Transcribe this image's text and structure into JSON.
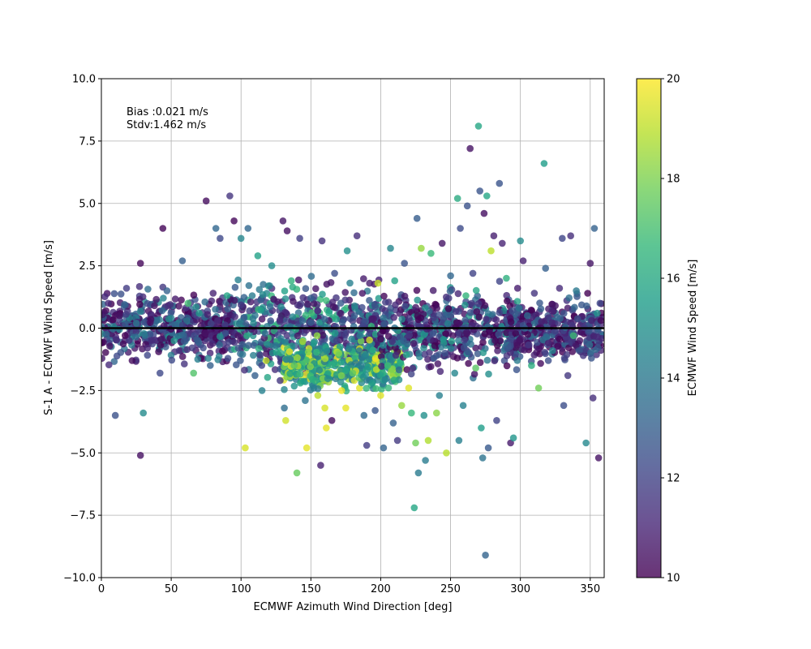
{
  "chart_data": {
    "type": "scatter",
    "xlabel": "ECMWF Azimuth Wind Direction [deg]",
    "ylabel": "S-1 A - ECMWF Wind Speed [m/s]",
    "xlim": [
      0,
      360
    ],
    "ylim": [
      -10,
      10
    ],
    "xticks": [
      0,
      50,
      100,
      150,
      200,
      250,
      300,
      350
    ],
    "yticks": [
      -10.0,
      -7.5,
      -5.0,
      -2.5,
      0.0,
      2.5,
      5.0,
      7.5,
      10.0
    ],
    "ytick_labels": [
      "−10.0",
      "−7.5",
      "−5.0",
      "−2.5",
      "0.0",
      "2.5",
      "5.0",
      "7.5",
      "10.0"
    ],
    "grid": true,
    "annotation": {
      "line1": "Bias :0.021 m/s",
      "line2": "Stdv:1.462 m/s"
    },
    "zero_line": 0,
    "colorbar": {
      "label": "ECMWF Wind Speed [m/s]",
      "range": [
        10,
        20
      ],
      "ticks": [
        10,
        12,
        14,
        16,
        18,
        20
      ],
      "colormap": "viridis",
      "stops": [
        "#440154",
        "#482878",
        "#3e4989",
        "#31688e",
        "#26828e",
        "#1f9e89",
        "#35b779",
        "#6ece58",
        "#b5de2b",
        "#fde725"
      ]
    },
    "point_alpha": 0.8,
    "points": [
      [
        5,
        1.0,
        11.2
      ],
      [
        10,
        -3.5,
        12.5
      ],
      [
        13,
        0.5,
        10.5
      ],
      [
        18,
        1.6,
        11.8
      ],
      [
        22,
        -1.3,
        10.3
      ],
      [
        25,
        0.2,
        14.0
      ],
      [
        28,
        2.6,
        10.2
      ],
      [
        28,
        -5.1,
        10.4
      ],
      [
        30,
        -3.4,
        14.8
      ],
      [
        33,
        -0.8,
        11.1
      ],
      [
        38,
        0.9,
        10.6
      ],
      [
        42,
        -1.8,
        12.2
      ],
      [
        44,
        4.0,
        10.1
      ],
      [
        47,
        1.5,
        13.1
      ],
      [
        52,
        -0.5,
        15.1
      ],
      [
        58,
        2.7,
        13.0
      ],
      [
        62,
        1.0,
        16.9
      ],
      [
        66,
        -1.8,
        17.2
      ],
      [
        70,
        0.6,
        15.3
      ],
      [
        75,
        5.1,
        10.3
      ],
      [
        80,
        1.4,
        11.0
      ],
      [
        82,
        4.0,
        13.3
      ],
      [
        85,
        3.6,
        12.2
      ],
      [
        90,
        1.3,
        15.8
      ],
      [
        92,
        5.3,
        11.5
      ],
      [
        95,
        4.3,
        10.2
      ],
      [
        98,
        -0.8,
        12.5
      ],
      [
        100,
        3.6,
        14.6
      ],
      [
        103,
        -4.8,
        19.4
      ],
      [
        105,
        4.0,
        13.3
      ],
      [
        108,
        1.3,
        14.2
      ],
      [
        110,
        -1.9,
        13.0
      ],
      [
        112,
        2.9,
        15.7
      ],
      [
        115,
        -2.5,
        14.4
      ],
      [
        118,
        -1.3,
        19.0
      ],
      [
        122,
        2.5,
        14.9
      ],
      [
        125,
        -0.7,
        13.9
      ],
      [
        128,
        -2.1,
        11.6
      ],
      [
        130,
        4.3,
        10.6
      ],
      [
        131,
        -3.2,
        13.6
      ],
      [
        132,
        -3.7,
        19.3
      ],
      [
        133,
        3.9,
        10.4
      ],
      [
        136,
        1.9,
        16.4
      ],
      [
        138,
        -1.5,
        17.4
      ],
      [
        140,
        -5.8,
        17.6
      ],
      [
        142,
        3.6,
        11.9
      ],
      [
        144,
        0.3,
        13.3
      ],
      [
        146,
        -2.9,
        13.8
      ],
      [
        147,
        -4.8,
        19.6
      ],
      [
        150,
        1.2,
        12.9
      ],
      [
        152,
        -0.6,
        15.5
      ],
      [
        155,
        -2.7,
        19.0
      ],
      [
        157,
        -5.5,
        10.9
      ],
      [
        158,
        3.5,
        11.4
      ],
      [
        160,
        -3.2,
        19.4
      ],
      [
        161,
        -4.0,
        19.6
      ],
      [
        163,
        0.6,
        15.9
      ],
      [
        165,
        -3.7,
        10.3
      ],
      [
        167,
        2.2,
        12.4
      ],
      [
        170,
        -1.0,
        18.1
      ],
      [
        172,
        -2.5,
        19.8
      ],
      [
        175,
        -3.2,
        19.6
      ],
      [
        176,
        3.1,
        15.0
      ],
      [
        180,
        -1.8,
        17.5
      ],
      [
        183,
        3.7,
        11.3
      ],
      [
        185,
        -0.3,
        14.1
      ],
      [
        188,
        -3.5,
        13.4
      ],
      [
        190,
        -4.7,
        11.8
      ],
      [
        192,
        1.8,
        10.8
      ],
      [
        194,
        -2.2,
        15.4
      ],
      [
        196,
        -3.3,
        12.7
      ],
      [
        198,
        1.8,
        19.2
      ],
      [
        200,
        -2.7,
        19.5
      ],
      [
        202,
        -4.8,
        13.2
      ],
      [
        205,
        -1.5,
        16.8
      ],
      [
        207,
        3.2,
        14.6
      ],
      [
        209,
        -3.8,
        13.1
      ],
      [
        210,
        1.9,
        15.7
      ],
      [
        212,
        -4.5,
        11.7
      ],
      [
        215,
        -3.1,
        18.4
      ],
      [
        217,
        2.6,
        12.6
      ],
      [
        220,
        -2.4,
        19.5
      ],
      [
        222,
        -3.4,
        16.6
      ],
      [
        224,
        -7.2,
        15.9
      ],
      [
        225,
        -4.6,
        17.8
      ],
      [
        226,
        4.4,
        12.9
      ],
      [
        227,
        -5.8,
        14.1
      ],
      [
        229,
        3.2,
        18.4
      ],
      [
        231,
        -3.5,
        15.0
      ],
      [
        232,
        -5.3,
        14.2
      ],
      [
        234,
        -4.5,
        18.8
      ],
      [
        236,
        3.0,
        16.7
      ],
      [
        238,
        -1.2,
        12.8
      ],
      [
        240,
        -3.4,
        18.2
      ],
      [
        242,
        -2.7,
        14.3
      ],
      [
        244,
        3.4,
        10.6
      ],
      [
        246,
        -1.0,
        12.5
      ],
      [
        247,
        -5.0,
        18.9
      ],
      [
        250,
        2.1,
        13.3
      ],
      [
        253,
        -1.8,
        14.6
      ],
      [
        255,
        5.2,
        16.1
      ],
      [
        256,
        -4.5,
        14.3
      ],
      [
        257,
        4.0,
        12.3
      ],
      [
        259,
        -3.1,
        14.4
      ],
      [
        261,
        1.3,
        16.5
      ],
      [
        262,
        4.9,
        12.5
      ],
      [
        264,
        7.2,
        10.5
      ],
      [
        266,
        2.2,
        12.0
      ],
      [
        268,
        -1.6,
        17.4
      ],
      [
        270,
        8.1,
        15.9
      ],
      [
        271,
        5.5,
        12.6
      ],
      [
        272,
        -4.0,
        15.5
      ],
      [
        273,
        -5.2,
        13.8
      ],
      [
        274,
        4.6,
        10.4
      ],
      [
        275,
        -9.1,
        13.2
      ],
      [
        276,
        5.3,
        15.9
      ],
      [
        277,
        -4.8,
        12.8
      ],
      [
        279,
        3.1,
        19.0
      ],
      [
        281,
        3.7,
        10.9
      ],
      [
        283,
        -3.7,
        12.0
      ],
      [
        285,
        5.8,
        12.6
      ],
      [
        287,
        3.4,
        11.0
      ],
      [
        290,
        2.0,
        16.3
      ],
      [
        293,
        -4.6,
        10.7
      ],
      [
        295,
        -4.4,
        15.2
      ],
      [
        298,
        1.6,
        10.8
      ],
      [
        300,
        3.5,
        14.8
      ],
      [
        302,
        2.7,
        10.9
      ],
      [
        305,
        0.5,
        13.4
      ],
      [
        308,
        -1.5,
        16.2
      ],
      [
        310,
        1.4,
        11.5
      ],
      [
        313,
        -2.4,
        17.8
      ],
      [
        317,
        6.6,
        15.5
      ],
      [
        318,
        2.4,
        13.0
      ],
      [
        320,
        -1.3,
        12.4
      ],
      [
        323,
        -0.9,
        14.5
      ],
      [
        325,
        0.9,
        10.6
      ],
      [
        328,
        1.6,
        11.2
      ],
      [
        330,
        3.6,
        12.1
      ],
      [
        331,
        -3.1,
        12.4
      ],
      [
        334,
        -1.9,
        11.6
      ],
      [
        336,
        3.7,
        11.3
      ],
      [
        338,
        -0.3,
        16.8
      ],
      [
        340,
        1.5,
        14.0
      ],
      [
        342,
        -0.9,
        12.5
      ],
      [
        345,
        -1.1,
        11.6
      ],
      [
        347,
        -4.6,
        14.7
      ],
      [
        350,
        2.6,
        10.6
      ],
      [
        352,
        -2.8,
        11.3
      ],
      [
        353,
        4.0,
        13.1
      ],
      [
        355,
        0.6,
        15.0
      ],
      [
        356,
        -5.2,
        10.5
      ],
      [
        357,
        1.0,
        12.2
      ]
    ],
    "cluster": {
      "description_free": true,
      "blocks": [
        {
          "x": [
            0,
            95
          ],
          "y": [
            -1.8,
            1.9
          ],
          "c": [
            10,
            15
          ]
        },
        {
          "x": [
            95,
            200
          ],
          "y": [
            -2.5,
            2.4
          ],
          "c": [
            10.5,
            17
          ]
        },
        {
          "x": [
            130,
            215
          ],
          "y": [
            -2.8,
            -0.2
          ],
          "c": [
            14,
            20
          ]
        },
        {
          "x": [
            200,
            300
          ],
          "y": [
            -2.3,
            2.0
          ],
          "c": [
            10,
            16
          ]
        },
        {
          "x": [
            290,
            360
          ],
          "y": [
            -1.7,
            1.6
          ],
          "c": [
            10,
            14
          ]
        }
      ]
    }
  }
}
